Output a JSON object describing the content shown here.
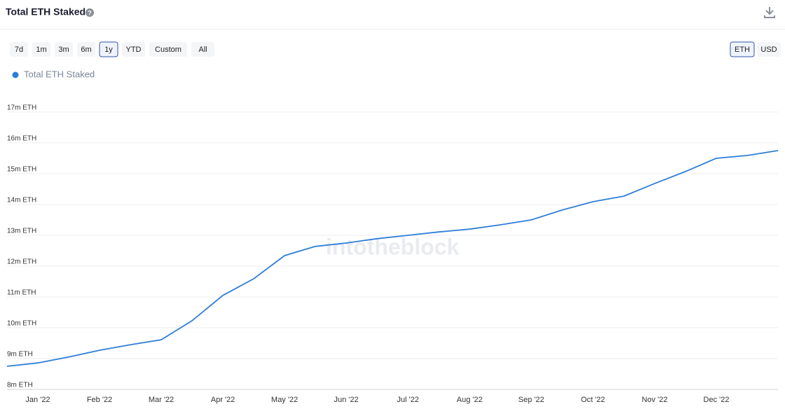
{
  "chart_data": {
    "type": "line",
    "title": "Total ETH Staked",
    "categories": [
      null,
      "Jan '22",
      null,
      "Feb '22",
      null,
      "Mar '22",
      null,
      "Apr '22",
      null,
      "May '22",
      null,
      "Jun '22",
      null,
      "Jul '22",
      null,
      "Aug '22",
      null,
      "Sep '22",
      null,
      "Oct '22",
      null,
      "Nov '22",
      null,
      "Dec '22",
      null,
      null
    ],
    "series": [
      {
        "name": "Total ETH Staked",
        "color": "#2f7ed8",
        "values": [
          8750000,
          8860000,
          9050000,
          9270000,
          9450000,
          9610000,
          10230000,
          11050000,
          11590000,
          12340000,
          12640000,
          12750000,
          12890000,
          13000000,
          13110000,
          13200000,
          13340000,
          13500000,
          13820000,
          14090000,
          14270000,
          14680000,
          15070000,
          15500000,
          15590000,
          15750000
        ]
      }
    ],
    "ylim": [
      8000000,
      17000000
    ],
    "yticks": [
      {
        "value": 8000000,
        "label": "8m ETH"
      },
      {
        "value": 9000000,
        "label": "9m ETH"
      },
      {
        "value": 10000000,
        "label": "10m ETH"
      },
      {
        "value": 11000000,
        "label": "11m ETH"
      },
      {
        "value": 12000000,
        "label": "12m ETH"
      },
      {
        "value": 13000000,
        "label": "13m ETH"
      },
      {
        "value": 14000000,
        "label": "14m ETH"
      },
      {
        "value": 15000000,
        "label": "15m ETH"
      },
      {
        "value": 16000000,
        "label": "16m ETH"
      },
      {
        "value": 17000000,
        "label": "17m ETH"
      }
    ],
    "grid": true
  },
  "ui": {
    "ranges": [
      "7d",
      "1m",
      "3m",
      "6m",
      "1y",
      "YTD",
      "Custom",
      "All"
    ],
    "active_range": 4,
    "units": [
      "ETH",
      "USD"
    ],
    "active_unit": 0,
    "watermark": "intotheblock"
  }
}
